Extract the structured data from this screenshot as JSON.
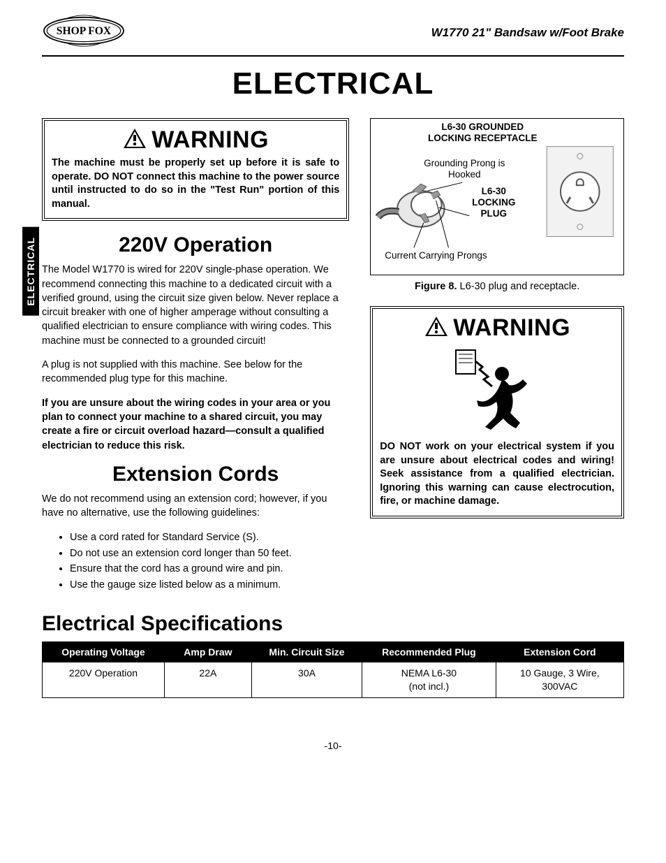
{
  "header": {
    "logo_text": "SHOP FOX",
    "title": "W1770 21\" Bandsaw w/Foot Brake"
  },
  "side_tab": "ELECTRICAL",
  "page_title": "ELECTRICAL",
  "warning1": {
    "label": "WARNING",
    "text": "The machine must be properly set up before it is safe to operate. DO NOT connect this machine to the power source until instructed to do so in the \"Test Run\" portion of this manual."
  },
  "section_220v": {
    "heading": "220V Operation",
    "p1": "The Model W1770 is wired for 220V single-phase operation. We recommend connecting this machine to a dedicated circuit with a verified ground, using the circuit size given below. Never replace a circuit breaker with one of higher amperage without consulting a qualified electrician to ensure compliance with wiring codes. This machine must be connected to a grounded circuit!",
    "p2": "A plug is not supplied with this machine. See below for the recommended plug type for this machine.",
    "p3": "If you are unsure about the wiring codes in your area or you plan to connect your machine to a shared circuit, you may create a fire or circuit overload hazard—consult a qualified electrician to reduce this risk."
  },
  "section_ext": {
    "heading": "Extension Cords",
    "intro": "We do not recommend using an extension cord; however, if you have no alternative, use the following guidelines:",
    "bullets": [
      "Use a cord rated for Standard Service (S).",
      "Do not use an extension cord longer than 50 feet.",
      "Ensure that the cord has a ground wire and pin.",
      "Use the gauge size listed below as a minimum."
    ]
  },
  "figure": {
    "title": "L6-30 GROUNDED LOCKING RECEPTACLE",
    "label_grounding": "Grounding Prong is Hooked",
    "label_plug": "L6-30 LOCKING PLUG",
    "label_prongs": "Current Carrying Prongs",
    "caption_prefix": "Figure 8.",
    "caption": " L6-30 plug and receptacle."
  },
  "warning2": {
    "label": "WARNING",
    "text": "DO NOT work on your electrical system if you are unsure about electrical codes and wiring! Seek assistance from a qualified electrician. Ignoring this warning can cause electrocution, fire, or machine damage."
  },
  "spec": {
    "heading": "Electrical Specifications",
    "columns": [
      "Operating Voltage",
      "Amp Draw",
      "Min. Circuit Size",
      "Recommended Plug",
      "Extension Cord"
    ],
    "row": [
      "220V Operation",
      "22A",
      "30A",
      "NEMA L6-30\n(not incl.)",
      "10 Gauge, 3 Wire,\n300VAC"
    ],
    "col_widths": [
      "21%",
      "15%",
      "19%",
      "23%",
      "22%"
    ],
    "header_bg": "#000000",
    "header_color": "#ffffff"
  },
  "page_number": "-10-"
}
